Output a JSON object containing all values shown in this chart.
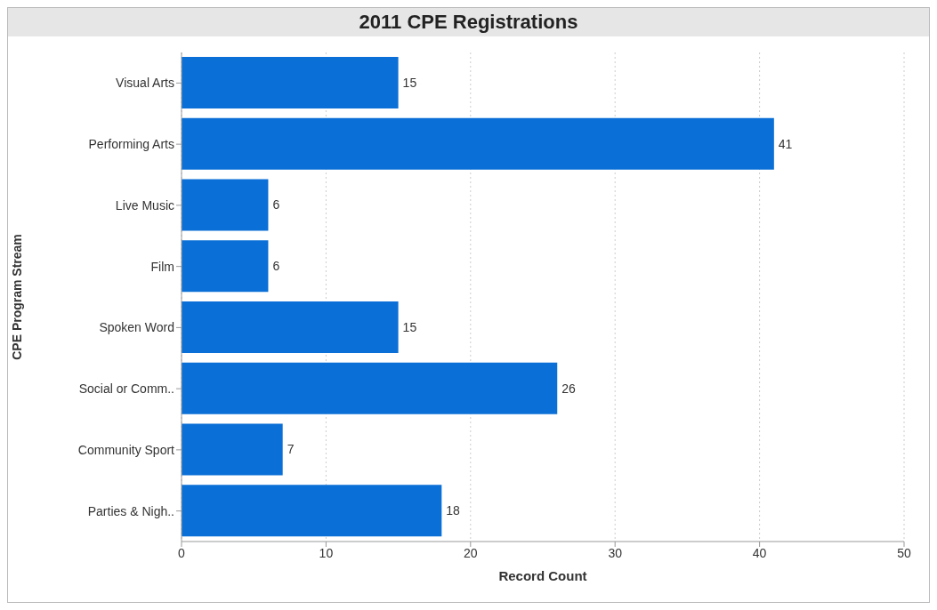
{
  "chart_data": {
    "type": "bar",
    "orientation": "horizontal",
    "title": "2011 CPE Registrations",
    "xlabel": "Record Count",
    "ylabel": "CPE Program Stream",
    "categories": [
      "Visual Arts",
      "Performing Arts",
      "Live Music",
      "Film",
      "Spoken Word",
      "Social or Comm..",
      "Community Sport",
      "Parties & Nigh.."
    ],
    "values": [
      15,
      41,
      6,
      6,
      15,
      26,
      7,
      18
    ],
    "color": "#0a6fd6",
    "xlim": [
      0,
      50
    ],
    "xticks": [
      0,
      10,
      20,
      30,
      40,
      50
    ],
    "grid": "x",
    "data_labels": true
  }
}
